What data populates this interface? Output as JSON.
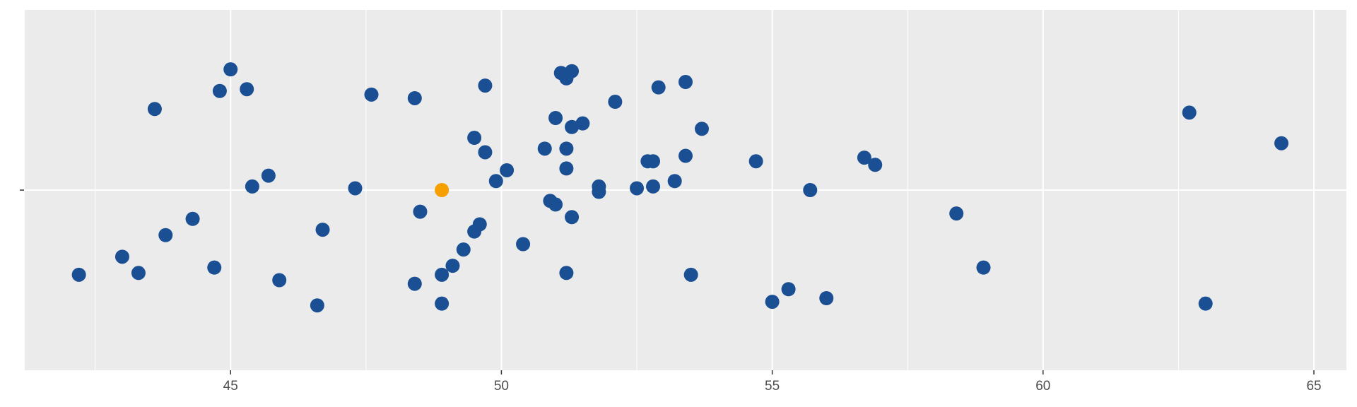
{
  "chart_data": {
    "type": "scatter",
    "title": "",
    "xlabel": "",
    "ylabel": "",
    "xlim": [
      41.2,
      65.6
    ],
    "ylim": [
      -1,
      1
    ],
    "x_ticks_major": [
      45,
      50,
      55,
      60,
      65
    ],
    "x_ticks_minor": [
      42.5,
      47.5,
      52.5,
      57.5,
      62.5
    ],
    "grid": true,
    "legend": "none",
    "colors": {
      "panel": "#EBEBEB",
      "grid": "#FFFFFF",
      "point": "#1A4F93",
      "highlight": "#F5A000"
    },
    "series": [
      {
        "role": "main",
        "color": "#1A4F93",
        "points": [
          {
            "x": 45.0,
            "y": 0.67
          },
          {
            "x": 44.8,
            "y": 0.55
          },
          {
            "x": 45.3,
            "y": 0.56
          },
          {
            "x": 43.6,
            "y": 0.45
          },
          {
            "x": 47.6,
            "y": 0.53
          },
          {
            "x": 48.4,
            "y": 0.51
          },
          {
            "x": 49.7,
            "y": 0.58
          },
          {
            "x": 51.1,
            "y": 0.65
          },
          {
            "x": 51.2,
            "y": 0.62
          },
          {
            "x": 51.3,
            "y": 0.66
          },
          {
            "x": 53.4,
            "y": 0.6
          },
          {
            "x": 52.9,
            "y": 0.57
          },
          {
            "x": 52.1,
            "y": 0.49
          },
          {
            "x": 51.0,
            "y": 0.4
          },
          {
            "x": 51.5,
            "y": 0.37
          },
          {
            "x": 51.3,
            "y": 0.35
          },
          {
            "x": 53.7,
            "y": 0.34
          },
          {
            "x": 49.5,
            "y": 0.29
          },
          {
            "x": 50.8,
            "y": 0.23
          },
          {
            "x": 51.2,
            "y": 0.23
          },
          {
            "x": 49.7,
            "y": 0.21
          },
          {
            "x": 52.7,
            "y": 0.16
          },
          {
            "x": 52.8,
            "y": 0.16
          },
          {
            "x": 53.4,
            "y": 0.19
          },
          {
            "x": 54.7,
            "y": 0.16
          },
          {
            "x": 56.7,
            "y": 0.18
          },
          {
            "x": 56.9,
            "y": 0.14
          },
          {
            "x": 62.7,
            "y": 0.43
          },
          {
            "x": 64.4,
            "y": 0.26
          },
          {
            "x": 45.7,
            "y": 0.08
          },
          {
            "x": 45.4,
            "y": 0.02
          },
          {
            "x": 47.3,
            "y": 0.01
          },
          {
            "x": 49.9,
            "y": 0.05
          },
          {
            "x": 50.1,
            "y": 0.11
          },
          {
            "x": 51.2,
            "y": 0.12
          },
          {
            "x": 51.8,
            "y": 0.02
          },
          {
            "x": 51.8,
            "y": -0.01
          },
          {
            "x": 52.5,
            "y": 0.01
          },
          {
            "x": 52.8,
            "y": 0.02
          },
          {
            "x": 53.2,
            "y": 0.05
          },
          {
            "x": 55.7,
            "y": 0.0
          },
          {
            "x": 44.3,
            "y": -0.16
          },
          {
            "x": 43.8,
            "y": -0.25
          },
          {
            "x": 46.7,
            "y": -0.22
          },
          {
            "x": 48.5,
            "y": -0.12
          },
          {
            "x": 50.9,
            "y": -0.06
          },
          {
            "x": 51.0,
            "y": -0.08
          },
          {
            "x": 51.3,
            "y": -0.15
          },
          {
            "x": 49.6,
            "y": -0.19
          },
          {
            "x": 49.5,
            "y": -0.23
          },
          {
            "x": 50.4,
            "y": -0.3
          },
          {
            "x": 49.3,
            "y": -0.33
          },
          {
            "x": 58.4,
            "y": -0.13
          },
          {
            "x": 43.0,
            "y": -0.37
          },
          {
            "x": 42.2,
            "y": -0.47
          },
          {
            "x": 43.3,
            "y": -0.46
          },
          {
            "x": 44.7,
            "y": -0.43
          },
          {
            "x": 45.9,
            "y": -0.5
          },
          {
            "x": 48.4,
            "y": -0.52
          },
          {
            "x": 48.9,
            "y": -0.47
          },
          {
            "x": 49.1,
            "y": -0.42
          },
          {
            "x": 51.2,
            "y": -0.46
          },
          {
            "x": 53.5,
            "y": -0.47
          },
          {
            "x": 58.9,
            "y": -0.43
          },
          {
            "x": 46.6,
            "y": -0.64
          },
          {
            "x": 48.9,
            "y": -0.63
          },
          {
            "x": 55.0,
            "y": -0.62
          },
          {
            "x": 55.3,
            "y": -0.55
          },
          {
            "x": 56.0,
            "y": -0.6
          },
          {
            "x": 63.0,
            "y": -0.63
          }
        ]
      },
      {
        "role": "highlight",
        "color": "#F5A000",
        "points": [
          {
            "x": 48.9,
            "y": 0.0
          }
        ]
      }
    ]
  }
}
